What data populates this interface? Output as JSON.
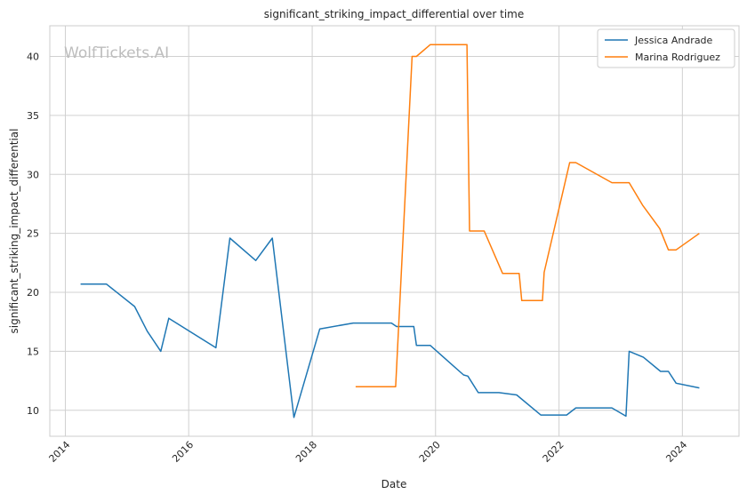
{
  "chart_data": {
    "type": "line",
    "title": "significant_striking_impact_differential over time",
    "xlabel": "Date",
    "ylabel": "significant_striking_impact_differential",
    "xlim": [
      "2013-10-01",
      "2024-12-01"
    ],
    "ylim": [
      7.8,
      42.6
    ],
    "x_ticks": [
      "2014",
      "2016",
      "2018",
      "2020",
      "2022",
      "2024"
    ],
    "y_ticks": [
      10,
      15,
      20,
      25,
      30,
      35,
      40
    ],
    "grid": true,
    "legend_position": "top-right",
    "watermark": "WolfTickets.AI",
    "series": [
      {
        "name": "Jessica Andrade",
        "color": "#1f77b4",
        "points": [
          [
            "2014-04-01",
            20.7
          ],
          [
            "2014-09-01",
            20.7
          ],
          [
            "2015-02-15",
            18.8
          ],
          [
            "2015-05-01",
            16.7
          ],
          [
            "2015-07-20",
            15.0
          ],
          [
            "2015-09-05",
            17.8
          ],
          [
            "2016-06-10",
            15.3
          ],
          [
            "2016-09-01",
            24.6
          ],
          [
            "2017-02-01",
            22.7
          ],
          [
            "2017-05-10",
            24.6
          ],
          [
            "2017-09-15",
            9.4
          ],
          [
            "2018-02-15",
            16.9
          ],
          [
            "2018-09-01",
            17.4
          ],
          [
            "2019-04-15",
            17.4
          ],
          [
            "2019-05-15",
            17.1
          ],
          [
            "2019-08-25",
            17.1
          ],
          [
            "2019-09-10",
            15.5
          ],
          [
            "2019-12-01",
            15.5
          ],
          [
            "2020-06-15",
            13.0
          ],
          [
            "2020-07-10",
            12.9
          ],
          [
            "2020-09-10",
            11.5
          ],
          [
            "2021-01-10",
            11.5
          ],
          [
            "2021-04-25",
            11.3
          ],
          [
            "2021-09-15",
            9.6
          ],
          [
            "2022-02-15",
            9.6
          ],
          [
            "2022-04-10",
            10.2
          ],
          [
            "2022-11-10",
            10.2
          ],
          [
            "2023-02-01",
            9.5
          ],
          [
            "2023-02-20",
            15.0
          ],
          [
            "2023-05-15",
            14.5
          ],
          [
            "2023-08-25",
            13.3
          ],
          [
            "2023-10-10",
            13.3
          ],
          [
            "2023-11-25",
            12.3
          ],
          [
            "2024-04-10",
            11.9
          ]
        ]
      },
      {
        "name": "Marina Rodriguez",
        "color": "#ff7f0e",
        "points": [
          [
            "2018-09-15",
            12.0
          ],
          [
            "2019-05-10",
            12.0
          ],
          [
            "2019-08-15",
            40.0
          ],
          [
            "2019-09-10",
            40.0
          ],
          [
            "2019-12-01",
            41.0
          ],
          [
            "2020-07-05",
            41.0
          ],
          [
            "2020-07-20",
            25.2
          ],
          [
            "2020-10-15",
            25.2
          ],
          [
            "2021-02-01",
            21.6
          ],
          [
            "2021-05-10",
            21.6
          ],
          [
            "2021-05-25",
            19.3
          ],
          [
            "2021-09-25",
            19.3
          ],
          [
            "2021-10-05",
            21.7
          ],
          [
            "2022-03-05",
            31.0
          ],
          [
            "2022-04-10",
            31.0
          ],
          [
            "2022-11-10",
            29.3
          ],
          [
            "2023-02-20",
            29.3
          ],
          [
            "2023-05-10",
            27.4
          ],
          [
            "2023-08-20",
            25.4
          ],
          [
            "2023-10-10",
            23.6
          ],
          [
            "2023-11-25",
            23.6
          ],
          [
            "2024-04-10",
            25.0
          ]
        ]
      }
    ]
  }
}
